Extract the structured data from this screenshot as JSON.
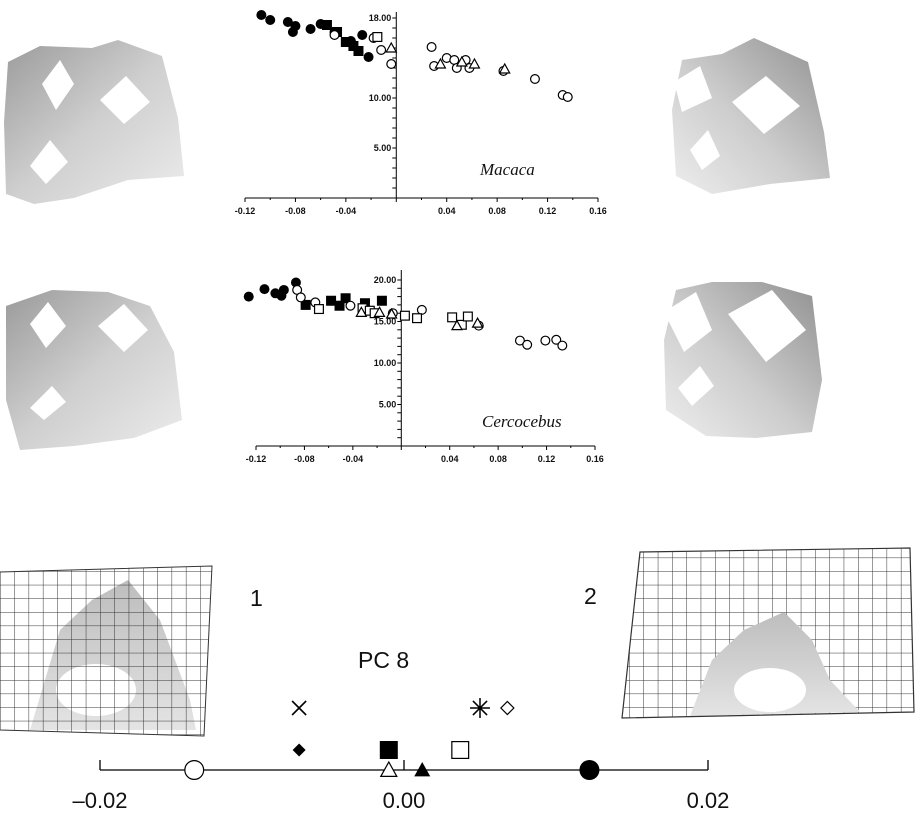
{
  "chart_data": [
    {
      "type": "scatter",
      "annotation": "Macaca",
      "x_ticks": [
        "-0.12",
        "-0.08",
        "-0.04",
        "0.04",
        "0.08",
        "0.12",
        "0.16"
      ],
      "y_ticks": [
        "18.00",
        "10.00",
        "5.00"
      ],
      "xlim": [
        -0.12,
        0.16
      ],
      "ylim": [
        0,
        18
      ],
      "grid": false,
      "points": [
        {
          "x": -0.107,
          "y": 18.3,
          "m": "filled-circle"
        },
        {
          "x": -0.1,
          "y": 17.8,
          "m": "filled-circle"
        },
        {
          "x": -0.086,
          "y": 17.6,
          "m": "filled-circle"
        },
        {
          "x": -0.08,
          "y": 17.2,
          "m": "filled-circle"
        },
        {
          "x": -0.082,
          "y": 16.6,
          "m": "filled-circle"
        },
        {
          "x": -0.068,
          "y": 16.9,
          "m": "filled-circle"
        },
        {
          "x": -0.06,
          "y": 17.4,
          "m": "filled-circle"
        },
        {
          "x": -0.049,
          "y": 16.6,
          "m": "filled-circle"
        },
        {
          "x": -0.027,
          "y": 16.3,
          "m": "filled-circle"
        },
        {
          "x": -0.036,
          "y": 15.7,
          "m": "filled-circle"
        },
        {
          "x": -0.022,
          "y": 14.1,
          "m": "filled-circle"
        },
        {
          "x": -0.055,
          "y": 17.3,
          "m": "filled-square"
        },
        {
          "x": -0.047,
          "y": 16.6,
          "m": "filled-square"
        },
        {
          "x": -0.04,
          "y": 15.6,
          "m": "filled-square"
        },
        {
          "x": -0.034,
          "y": 15.2,
          "m": "filled-square"
        },
        {
          "x": -0.03,
          "y": 14.7,
          "m": "filled-square"
        },
        {
          "x": -0.049,
          "y": 16.3,
          "m": "open-circle"
        },
        {
          "x": -0.018,
          "y": 16.0,
          "m": "open-circle"
        },
        {
          "x": -0.012,
          "y": 14.8,
          "m": "open-circle"
        },
        {
          "x": -0.004,
          "y": 13.4,
          "m": "open-circle"
        },
        {
          "x": 0.028,
          "y": 15.1,
          "m": "open-circle"
        },
        {
          "x": 0.03,
          "y": 13.2,
          "m": "open-circle"
        },
        {
          "x": 0.04,
          "y": 14.0,
          "m": "open-circle"
        },
        {
          "x": 0.046,
          "y": 13.8,
          "m": "open-circle"
        },
        {
          "x": 0.048,
          "y": 13.0,
          "m": "open-circle"
        },
        {
          "x": 0.055,
          "y": 13.8,
          "m": "open-circle"
        },
        {
          "x": 0.058,
          "y": 13.0,
          "m": "open-circle"
        },
        {
          "x": 0.085,
          "y": 12.7,
          "m": "open-circle"
        },
        {
          "x": 0.11,
          "y": 11.9,
          "m": "open-circle"
        },
        {
          "x": 0.132,
          "y": 10.3,
          "m": "open-circle"
        },
        {
          "x": 0.136,
          "y": 10.1,
          "m": "open-circle"
        },
        {
          "x": -0.015,
          "y": 16.1,
          "m": "open-square"
        },
        {
          "x": -0.004,
          "y": 15.0,
          "m": "open-triangle"
        },
        {
          "x": 0.035,
          "y": 13.4,
          "m": "open-triangle"
        },
        {
          "x": 0.052,
          "y": 13.6,
          "m": "open-triangle"
        },
        {
          "x": 0.062,
          "y": 13.4,
          "m": "open-triangle"
        },
        {
          "x": 0.086,
          "y": 12.9,
          "m": "open-triangle"
        }
      ]
    },
    {
      "type": "scatter",
      "annotation": "Cercocebus",
      "x_ticks": [
        "-0.12",
        "-0.08",
        "-0.04",
        "0.04",
        "0.08",
        "0.12",
        "0.16"
      ],
      "y_ticks": [
        "20.00",
        "15.00",
        "10.00",
        "5.00"
      ],
      "xlim": [
        -0.12,
        0.16
      ],
      "ylim": [
        0,
        20
      ],
      "grid": false,
      "points": [
        {
          "x": -0.126,
          "y": 18.0,
          "m": "filled-circle"
        },
        {
          "x": -0.113,
          "y": 18.9,
          "m": "filled-circle"
        },
        {
          "x": -0.104,
          "y": 18.4,
          "m": "filled-circle"
        },
        {
          "x": -0.099,
          "y": 18.1,
          "m": "filled-circle"
        },
        {
          "x": -0.097,
          "y": 18.8,
          "m": "filled-circle"
        },
        {
          "x": -0.087,
          "y": 19.7,
          "m": "filled-circle"
        },
        {
          "x": -0.079,
          "y": 17.0,
          "m": "filled-square"
        },
        {
          "x": -0.058,
          "y": 17.5,
          "m": "filled-square"
        },
        {
          "x": -0.051,
          "y": 16.9,
          "m": "filled-square"
        },
        {
          "x": -0.046,
          "y": 17.8,
          "m": "filled-square"
        },
        {
          "x": -0.03,
          "y": 17.2,
          "m": "filled-square"
        },
        {
          "x": -0.016,
          "y": 17.5,
          "m": "filled-square"
        },
        {
          "x": -0.086,
          "y": 18.8,
          "m": "open-circle"
        },
        {
          "x": -0.083,
          "y": 17.9,
          "m": "open-circle"
        },
        {
          "x": -0.071,
          "y": 17.3,
          "m": "open-circle"
        },
        {
          "x": -0.042,
          "y": 16.9,
          "m": "open-circle"
        },
        {
          "x": -0.007,
          "y": 16.0,
          "m": "open-circle"
        },
        {
          "x": 0.017,
          "y": 16.4,
          "m": "open-circle"
        },
        {
          "x": 0.064,
          "y": 14.5,
          "m": "open-circle"
        },
        {
          "x": 0.098,
          "y": 12.7,
          "m": "open-circle"
        },
        {
          "x": 0.104,
          "y": 12.2,
          "m": "open-circle"
        },
        {
          "x": 0.119,
          "y": 12.7,
          "m": "open-circle"
        },
        {
          "x": 0.128,
          "y": 12.8,
          "m": "open-circle"
        },
        {
          "x": 0.133,
          "y": 12.1,
          "m": "open-circle"
        },
        {
          "x": -0.068,
          "y": 16.5,
          "m": "open-square"
        },
        {
          "x": -0.032,
          "y": 16.6,
          "m": "open-square"
        },
        {
          "x": -0.026,
          "y": 16.3,
          "m": "open-square"
        },
        {
          "x": -0.022,
          "y": 16.0,
          "m": "open-square"
        },
        {
          "x": 0.003,
          "y": 15.7,
          "m": "open-square"
        },
        {
          "x": 0.013,
          "y": 15.4,
          "m": "open-square"
        },
        {
          "x": 0.042,
          "y": 15.5,
          "m": "open-square"
        },
        {
          "x": 0.05,
          "y": 14.6,
          "m": "open-square"
        },
        {
          "x": 0.055,
          "y": 15.6,
          "m": "open-square"
        },
        {
          "x": -0.033,
          "y": 16.1,
          "m": "open-triangle"
        },
        {
          "x": -0.018,
          "y": 16.1,
          "m": "open-triangle"
        },
        {
          "x": -0.008,
          "y": 15.9,
          "m": "open-triangle"
        },
        {
          "x": 0.046,
          "y": 14.5,
          "m": "open-triangle"
        },
        {
          "x": 0.063,
          "y": 14.8,
          "m": "open-triangle"
        }
      ]
    },
    {
      "type": "scatter",
      "title": "PC 8",
      "shape_labels": [
        "1",
        "2"
      ],
      "x_ticks": [
        "–0.02",
        "0.00",
        "0.02"
      ],
      "xlim": [
        -0.02,
        0.02
      ],
      "points": [
        {
          "x": -0.0138,
          "row": 0,
          "m": "open-circle"
        },
        {
          "x": -0.0069,
          "row": 2,
          "m": "x-cross"
        },
        {
          "x": -0.0069,
          "row": 1,
          "m": "filled-diamond"
        },
        {
          "x": -0.001,
          "row": 1,
          "m": "filled-square"
        },
        {
          "x": -0.001,
          "row": 0,
          "m": "open-triangle"
        },
        {
          "x": 0.0012,
          "row": 0,
          "m": "filled-triangle"
        },
        {
          "x": 0.0037,
          "row": 1,
          "m": "open-square"
        },
        {
          "x": 0.005,
          "row": 2,
          "m": "asterisk"
        },
        {
          "x": 0.0068,
          "row": 2,
          "m": "open-diamond"
        },
        {
          "x": 0.0122,
          "row": 0,
          "m": "filled-circle"
        }
      ]
    }
  ]
}
